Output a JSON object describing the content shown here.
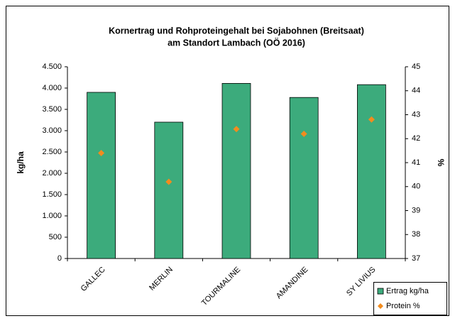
{
  "chart_data": {
    "type": "bar",
    "title": [
      "Kornertrag und Rohproteingehalt bei Sojabohnen (Breitsaat)",
      "am Standort Lambach (OÖ 2016)"
    ],
    "y_label": "kg/ha",
    "y2_label": "%",
    "categories": [
      "GALLEC",
      "MERLIN",
      "TOURMALINE",
      "AMANDINE",
      "SY LIVIUS"
    ],
    "series": [
      {
        "name": "Ertrag kg/ha",
        "type": "bar",
        "color": "#3cab7c",
        "values": [
          3900,
          3200,
          4110,
          3780,
          4080
        ]
      },
      {
        "name": "Protein %",
        "type": "scatter",
        "axis": "y2",
        "color": "#f28c1e",
        "values": [
          41.4,
          40.2,
          42.4,
          42.2,
          42.8
        ]
      }
    ],
    "ylim": [
      0,
      4500
    ],
    "yticks": [
      0,
      500,
      {
        "value": 1000,
        "label": "1.000"
      },
      {
        "value": 1500,
        "label": "1.500"
      },
      {
        "value": 2000,
        "label": "2.000"
      },
      {
        "value": 2500,
        "label": "2.500"
      },
      {
        "value": 3000,
        "label": "3.000"
      },
      {
        "value": 3500,
        "label": "3.500"
      },
      {
        "value": 4000,
        "label": "4.000"
      },
      {
        "value": 4500,
        "label": "4.500"
      }
    ],
    "y2lim": [
      37,
      45
    ],
    "y2ticks": [
      37,
      38,
      39,
      40,
      41,
      42,
      43,
      44,
      45
    ],
    "grid": false,
    "legend": "bottom-right"
  }
}
